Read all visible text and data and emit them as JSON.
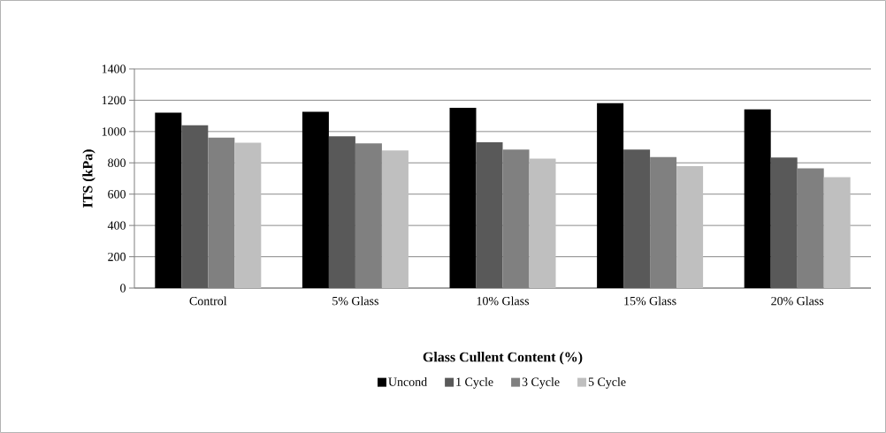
{
  "chart_data": {
    "type": "bar",
    "xlabel": "Glass Cullent Content (%)",
    "ylabel": "ITS (kPa)",
    "categories": [
      "Control",
      "5% Glass",
      "10% Glass",
      "15% Glass",
      "20% Glass"
    ],
    "series": [
      {
        "name": "Uncond",
        "color": "#000000",
        "values": [
          1121,
          1126,
          1152,
          1181,
          1142
        ]
      },
      {
        "name": "1 Cycle",
        "color": "#595959",
        "values": [
          1040,
          969,
          932,
          885,
          834
        ]
      },
      {
        "name": "3 Cycle",
        "color": "#808080",
        "values": [
          961,
          924,
          885,
          837,
          765
        ]
      },
      {
        "name": "5 Cycle",
        "color": "#bfbfbf",
        "values": [
          929,
          879,
          827,
          779,
          708
        ]
      }
    ],
    "ylim": [
      0,
      1400
    ],
    "yticks": [
      0,
      200,
      400,
      600,
      800,
      1000,
      1200,
      1400
    ],
    "grid": "y",
    "legend": "bottom"
  }
}
